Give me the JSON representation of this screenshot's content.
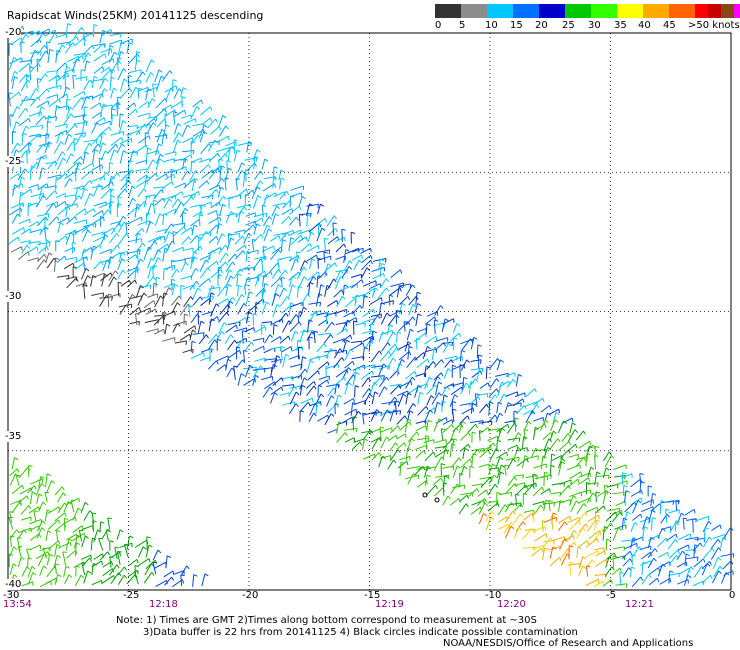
{
  "header": {
    "title": "Rapidscat Winds(25KM) 20141125 descending"
  },
  "colorbar": {
    "colors": [
      "#333333",
      "#8c8c8c",
      "#00c8ff",
      "#0070ff",
      "#0000c8",
      "#00c800",
      "#32ff00",
      "#ffff00",
      "#ffaa00",
      "#ff6400",
      "#ff0000",
      "#c80000",
      "#8b4513",
      "#ff00ff",
      "#aa00ff",
      "#330066"
    ],
    "labels": [
      "0",
      "5",
      "10",
      "15",
      "20",
      "25",
      "30",
      "35",
      "40",
      "45",
      ">50 knots"
    ]
  },
  "map": {
    "lat_labels": [
      "-20",
      "-25",
      "-30",
      "-35",
      "-40"
    ],
    "lon_labels": [
      "-30",
      "-25",
      "-20",
      "-15",
      "-10",
      "-5",
      "0"
    ],
    "time_labels": [
      "13:54",
      "12:18",
      "12:19",
      "12:20",
      "12:21"
    ]
  },
  "notes": {
    "line1": "Note: 1) Times are GMT 2)Times along bottom correspond to measurement at ~30S",
    "line2": "3)Data buffer is 22 hrs from 20141125 4) Black circles indicate possible contamination",
    "credit": "NOAA/NESDIS/Office of Research and Applications"
  }
}
